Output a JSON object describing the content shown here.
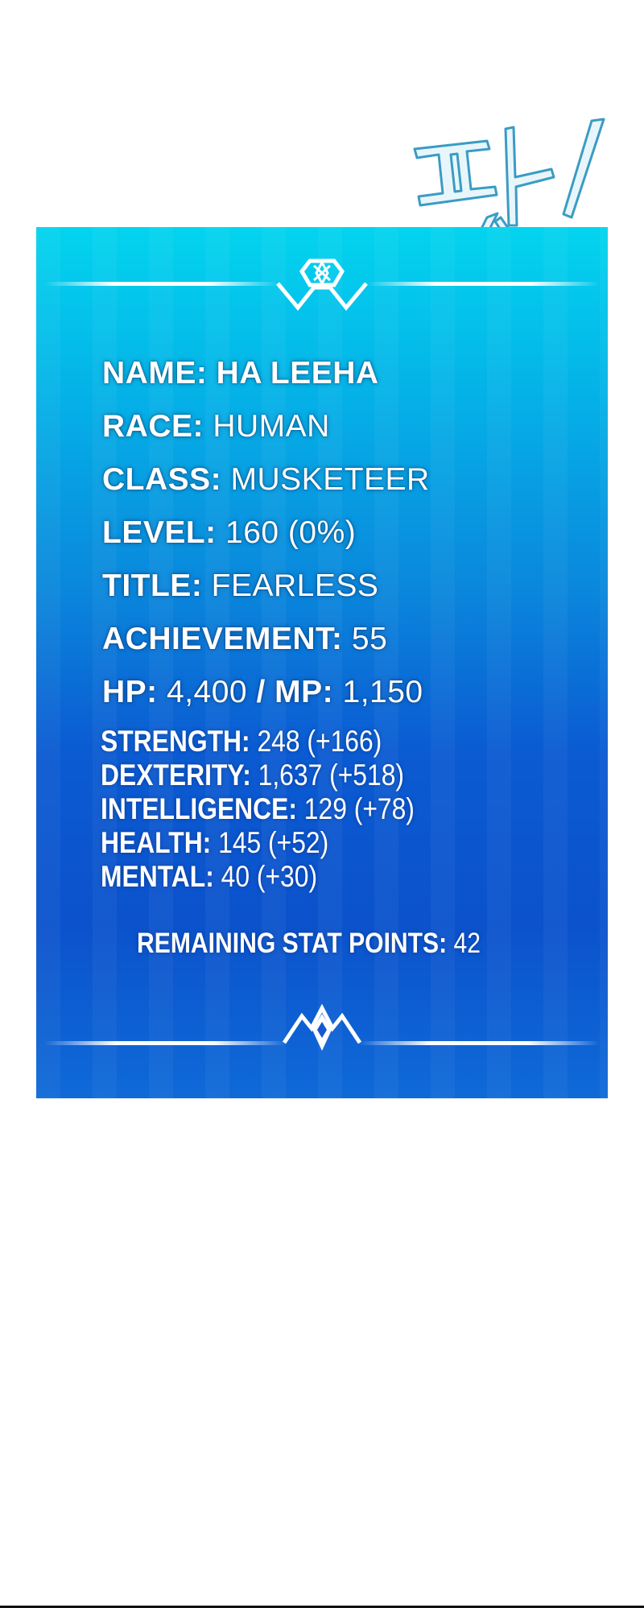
{
  "sound_effect": "팟!",
  "status_window": {
    "colors": {
      "top": "#03d4ee",
      "bottom": "#0b52cc",
      "text": "#ffffff"
    },
    "info": [
      {
        "label": "NAME:",
        "value": "HA LEEHA"
      },
      {
        "label": "RACE:",
        "value": "HUMAN"
      },
      {
        "label": "CLASS:",
        "value": "MUSKETEER"
      },
      {
        "label": "LEVEL:",
        "value": "160 (0%)"
      },
      {
        "label": "TITLE:",
        "value": "FEARLESS"
      },
      {
        "label": "ACHIEVEMENT:",
        "value": "55"
      }
    ],
    "hp_label": "HP:",
    "hp_value": "4,400",
    "separator": "/",
    "mp_label": "MP:",
    "mp_value": "1,150",
    "stats": [
      {
        "label": "STRENGTH:",
        "value": "248 (+166)"
      },
      {
        "label": "DEXTERITY:",
        "value": "1,637 (+518)"
      },
      {
        "label": "INTELLIGENCE:",
        "value": "129 (+78)"
      },
      {
        "label": "HEALTH:",
        "value": "145 (+52)"
      },
      {
        "label": "MENTAL:",
        "value": "40 (+30)"
      }
    ],
    "remaining_label": "REMAINING STAT POINTS:",
    "remaining_value": "42"
  }
}
